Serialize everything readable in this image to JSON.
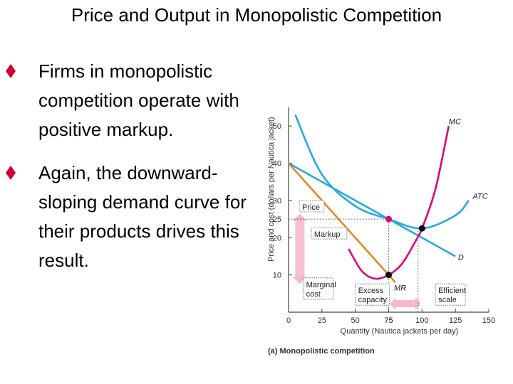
{
  "title": "Price and Output in Monopolistic Competition",
  "bullets": [
    {
      "text": "Firms in monopolistic competition operate with positive markup."
    },
    {
      "text": "Again, the downward-sloping demand curve for their products drives this result."
    }
  ],
  "colors": {
    "bullet": "#cc0033",
    "mc": "#e0007a",
    "atc": "#29a8de",
    "d": "#29a8de",
    "mr": "#e08a1e",
    "marker": "#f5b8cf"
  },
  "chart_data": {
    "type": "line",
    "title": "(a) Monopolistic competition",
    "xlabel": "Quantity (Nautica jackets per day)",
    "ylabel": "Price and cost (dollars per Nautica jacket)",
    "xlim": [
      0,
      150
    ],
    "ylim": [
      0,
      55
    ],
    "xticks": [
      "0",
      "25",
      "50",
      "75",
      "100",
      "125",
      "150"
    ],
    "yticks": [
      "10",
      "20",
      "30",
      "40",
      "50"
    ],
    "highlight": {
      "quantity_label": "75",
      "price_label": "25"
    },
    "series": [
      {
        "name": "MC",
        "x": [
          45,
          55,
          65,
          75,
          85,
          95,
          100,
          110,
          120
        ],
        "y": [
          17,
          11,
          9,
          10,
          13,
          19,
          22.5,
          33,
          50
        ]
      },
      {
        "name": "ATC",
        "x": [
          5,
          25,
          50,
          75,
          100,
          125,
          135
        ],
        "y": [
          53,
          37,
          28.5,
          25,
          22.5,
          26,
          30
        ]
      },
      {
        "name": "D",
        "x": [
          0,
          50,
          75,
          100,
          125
        ],
        "y": [
          40,
          30,
          25,
          20,
          15
        ]
      },
      {
        "name": "MR",
        "x": [
          0,
          25,
          50,
          75,
          80
        ],
        "y": [
          40,
          30,
          20,
          10,
          8
        ]
      }
    ],
    "annotations": [
      {
        "text": "Price"
      },
      {
        "text": "Markup"
      },
      {
        "text": "Marginal cost"
      },
      {
        "text": "Excess capacity"
      },
      {
        "text": "Efficient scale"
      }
    ],
    "curve_labels": [
      "MC",
      "ATC",
      "D",
      "MR"
    ]
  }
}
